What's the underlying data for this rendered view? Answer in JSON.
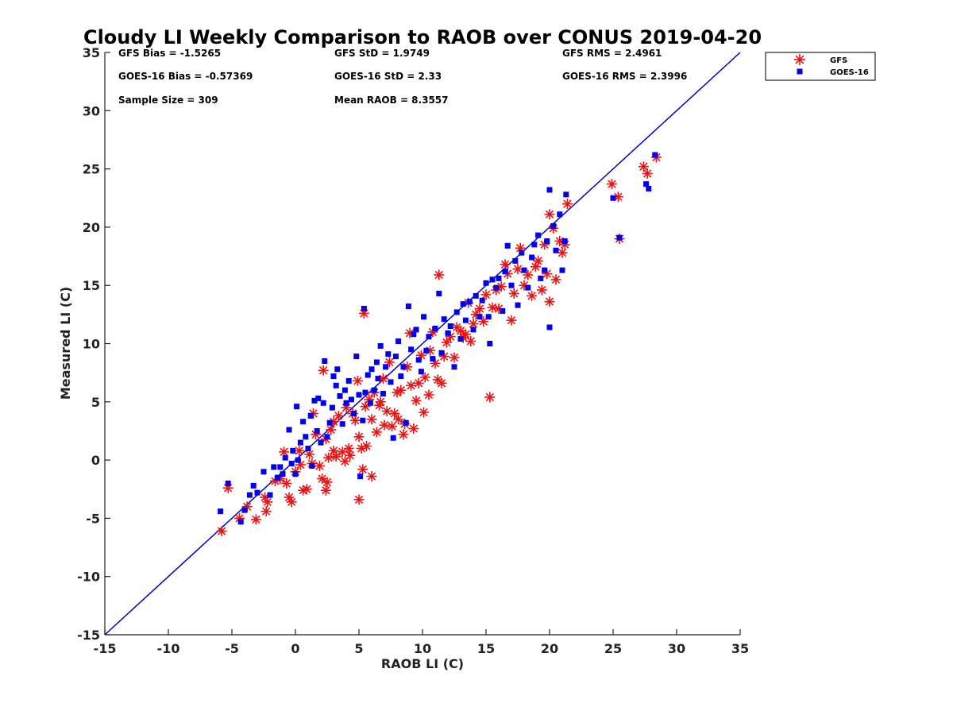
{
  "figure": {
    "title": "Cloudy LI Weekly Comparison to RAOB over CONUS 2019-04-20"
  },
  "stats": {
    "gfs_bias": "GFS Bias = -1.5265",
    "gfs_std": "GFS StD = 1.9749",
    "gfs_rms": "GFS RMS = 2.4961",
    "goes_bias": "GOES-16 Bias = -0.57369",
    "goes_std": "GOES-16 StD = 2.33",
    "goes_rms": "GOES-16 RMS = 2.3996",
    "sample_size": "Sample Size = 309",
    "mean_raob": "Mean RAOB = 8.3557"
  },
  "colors": {
    "gfs": "#ee1111",
    "goes": "#0000ee",
    "one_to_one": "#0000cc",
    "axes": "#222222"
  },
  "chart_data": {
    "type": "scatter",
    "title": "Cloudy LI Weekly Comparison to RAOB over CONUS 2019-04-20",
    "xlabel": "RAOB LI (C)",
    "ylabel": "Measured LI (C)",
    "xlim": [
      -15,
      35
    ],
    "ylim": [
      -15,
      35
    ],
    "xticks": [
      -15,
      -10,
      -5,
      0,
      5,
      10,
      15,
      20,
      25,
      30,
      35
    ],
    "yticks": [
      -15,
      -10,
      -5,
      0,
      5,
      10,
      15,
      20,
      25,
      30,
      35
    ],
    "grid": false,
    "legend_position": "top-right outside",
    "reference_line": {
      "type": "one-to-one",
      "from": [
        -15,
        -15
      ],
      "to": [
        35,
        35
      ]
    },
    "series": [
      {
        "name": "GFS",
        "marker": "asterisk",
        "color": "#ee1111",
        "points": [
          [
            -5.8,
            -6.1
          ],
          [
            -5.3,
            -2.4
          ],
          [
            -4.4,
            -5.0
          ],
          [
            -3.8,
            -4.0
          ],
          [
            -3.1,
            -5.1
          ],
          [
            -2.4,
            -3.2
          ],
          [
            -2.3,
            -4.4
          ],
          [
            -2.2,
            -3.6
          ],
          [
            -1.6,
            -1.8
          ],
          [
            -1.2,
            -1.6
          ],
          [
            -0.9,
            0.7
          ],
          [
            -0.7,
            -2.0
          ],
          [
            -0.5,
            -3.2
          ],
          [
            -0.3,
            -3.6
          ],
          [
            0.0,
            -1.0
          ],
          [
            0.3,
            0.8
          ],
          [
            0.4,
            -0.4
          ],
          [
            0.6,
            -2.6
          ],
          [
            0.9,
            -2.5
          ],
          [
            1.1,
            0.5
          ],
          [
            1.3,
            -0.3
          ],
          [
            1.4,
            4.0
          ],
          [
            1.6,
            2.2
          ],
          [
            1.9,
            -0.5
          ],
          [
            2.1,
            -1.6
          ],
          [
            2.2,
            7.7
          ],
          [
            2.4,
            -2.6
          ],
          [
            2.4,
            1.8
          ],
          [
            2.5,
            -1.9
          ],
          [
            2.6,
            0.2
          ],
          [
            2.8,
            2.6
          ],
          [
            3.0,
            0.8
          ],
          [
            3.0,
            3.3
          ],
          [
            3.2,
            0.3
          ],
          [
            3.4,
            3.8
          ],
          [
            3.7,
            0.7
          ],
          [
            3.9,
            -0.1
          ],
          [
            4.0,
            4.5
          ],
          [
            4.2,
            1.0
          ],
          [
            4.3,
            0.4
          ],
          [
            4.5,
            4.0
          ],
          [
            4.7,
            3.4
          ],
          [
            4.9,
            6.8
          ],
          [
            5.0,
            2.0
          ],
          [
            5.0,
            -3.4
          ],
          [
            5.2,
            1.0
          ],
          [
            5.3,
            -0.8
          ],
          [
            5.4,
            12.6
          ],
          [
            5.5,
            4.6
          ],
          [
            5.6,
            1.2
          ],
          [
            5.8,
            5.2
          ],
          [
            6.0,
            -1.4
          ],
          [
            6.0,
            3.5
          ],
          [
            6.2,
            5.8
          ],
          [
            6.4,
            2.4
          ],
          [
            6.6,
            4.7
          ],
          [
            6.7,
            5.0
          ],
          [
            6.9,
            7.0
          ],
          [
            7.0,
            3.0
          ],
          [
            7.2,
            4.2
          ],
          [
            7.4,
            8.4
          ],
          [
            7.6,
            2.9
          ],
          [
            7.8,
            4.0
          ],
          [
            8.0,
            5.8
          ],
          [
            8.1,
            3.5
          ],
          [
            8.3,
            6.0
          ],
          [
            8.5,
            2.2
          ],
          [
            8.6,
            3.1
          ],
          [
            8.8,
            8.0
          ],
          [
            9.0,
            10.9
          ],
          [
            9.1,
            6.4
          ],
          [
            9.3,
            2.7
          ],
          [
            9.5,
            5.1
          ],
          [
            9.7,
            6.6
          ],
          [
            9.9,
            9.0
          ],
          [
            10.1,
            4.1
          ],
          [
            10.2,
            7.1
          ],
          [
            10.5,
            5.6
          ],
          [
            10.6,
            9.4
          ],
          [
            10.8,
            11.0
          ],
          [
            11.0,
            8.3
          ],
          [
            11.2,
            6.9
          ],
          [
            11.3,
            15.9
          ],
          [
            11.5,
            6.6
          ],
          [
            11.7,
            8.9
          ],
          [
            11.9,
            10.1
          ],
          [
            12.2,
            10.6
          ],
          [
            12.5,
            8.8
          ],
          [
            12.7,
            11.4
          ],
          [
            13.0,
            11.1
          ],
          [
            13.2,
            10.5
          ],
          [
            13.4,
            10.8
          ],
          [
            13.6,
            13.5
          ],
          [
            13.8,
            10.2
          ],
          [
            14.0,
            11.7
          ],
          [
            14.2,
            12.5
          ],
          [
            14.5,
            13.0
          ],
          [
            14.8,
            11.9
          ],
          [
            15.0,
            14.2
          ],
          [
            15.3,
            5.4
          ],
          [
            15.5,
            13.1
          ],
          [
            15.8,
            14.6
          ],
          [
            16.0,
            13.0
          ],
          [
            16.2,
            14.9
          ],
          [
            16.5,
            16.8
          ],
          [
            16.7,
            16.0
          ],
          [
            17.0,
            12.0
          ],
          [
            17.2,
            14.3
          ],
          [
            17.5,
            16.4
          ],
          [
            17.7,
            18.2
          ],
          [
            18.0,
            15.0
          ],
          [
            18.3,
            15.9
          ],
          [
            18.6,
            14.1
          ],
          [
            18.9,
            16.6
          ],
          [
            19.1,
            17.1
          ],
          [
            19.4,
            14.6
          ],
          [
            19.6,
            18.5
          ],
          [
            19.8,
            16.0
          ],
          [
            20.0,
            13.6
          ],
          [
            20.0,
            21.1
          ],
          [
            20.3,
            19.9
          ],
          [
            20.5,
            15.5
          ],
          [
            20.8,
            18.8
          ],
          [
            21.0,
            17.8
          ],
          [
            21.2,
            18.5
          ],
          [
            21.4,
            22.0
          ],
          [
            24.9,
            23.7
          ],
          [
            25.4,
            22.6
          ],
          [
            25.5,
            19.0
          ],
          [
            27.4,
            25.2
          ],
          [
            27.7,
            24.6
          ],
          [
            28.4,
            26.0
          ]
        ]
      },
      {
        "name": "GOES-16",
        "marker": "square",
        "color": "#0000ee",
        "points": [
          [
            -5.9,
            -4.4
          ],
          [
            -5.3,
            -2.0
          ],
          [
            -4.3,
            -5.3
          ],
          [
            -4.0,
            -4.3
          ],
          [
            -3.6,
            -3.0
          ],
          [
            -3.3,
            -2.2
          ],
          [
            -3.0,
            -2.8
          ],
          [
            -2.5,
            -1.0
          ],
          [
            -2.0,
            -3.0
          ],
          [
            -1.7,
            -0.6
          ],
          [
            -1.4,
            -1.5
          ],
          [
            -1.2,
            -0.6
          ],
          [
            -1.0,
            -1.2
          ],
          [
            -0.8,
            0.2
          ],
          [
            -0.5,
            2.6
          ],
          [
            -0.3,
            -0.3
          ],
          [
            -0.2,
            0.8
          ],
          [
            0.0,
            -1.2
          ],
          [
            0.1,
            4.6
          ],
          [
            0.2,
            0.0
          ],
          [
            0.4,
            1.5
          ],
          [
            0.6,
            3.3
          ],
          [
            0.8,
            2.0
          ],
          [
            1.0,
            1.0
          ],
          [
            1.2,
            3.8
          ],
          [
            1.3,
            -0.5
          ],
          [
            1.5,
            5.1
          ],
          [
            1.7,
            2.5
          ],
          [
            1.8,
            5.3
          ],
          [
            2.0,
            1.5
          ],
          [
            2.2,
            4.9
          ],
          [
            2.3,
            8.5
          ],
          [
            2.5,
            2.0
          ],
          [
            2.7,
            3.2
          ],
          [
            2.9,
            4.5
          ],
          [
            3.0,
            7.2
          ],
          [
            3.2,
            6.4
          ],
          [
            3.3,
            7.8
          ],
          [
            3.5,
            5.5
          ],
          [
            3.7,
            3.1
          ],
          [
            3.9,
            6.0
          ],
          [
            4.0,
            4.9
          ],
          [
            4.2,
            6.8
          ],
          [
            4.4,
            5.2
          ],
          [
            4.6,
            4.0
          ],
          [
            4.8,
            8.9
          ],
          [
            5.0,
            5.6
          ],
          [
            5.1,
            -1.4
          ],
          [
            5.3,
            3.4
          ],
          [
            5.4,
            13.0
          ],
          [
            5.5,
            5.8
          ],
          [
            5.7,
            7.3
          ],
          [
            5.9,
            4.9
          ],
          [
            6.0,
            7.8
          ],
          [
            6.2,
            6.0
          ],
          [
            6.4,
            8.4
          ],
          [
            6.5,
            7.0
          ],
          [
            6.7,
            9.8
          ],
          [
            6.9,
            5.7
          ],
          [
            7.1,
            8.0
          ],
          [
            7.3,
            9.1
          ],
          [
            7.5,
            6.7
          ],
          [
            7.7,
            1.9
          ],
          [
            7.9,
            8.9
          ],
          [
            8.1,
            10.2
          ],
          [
            8.3,
            7.2
          ],
          [
            8.5,
            8.0
          ],
          [
            8.7,
            3.2
          ],
          [
            8.9,
            13.2
          ],
          [
            9.1,
            9.5
          ],
          [
            9.3,
            10.8
          ],
          [
            9.5,
            11.2
          ],
          [
            9.7,
            8.6
          ],
          [
            9.9,
            7.6
          ],
          [
            10.1,
            12.3
          ],
          [
            10.3,
            9.4
          ],
          [
            10.5,
            10.6
          ],
          [
            10.8,
            8.7
          ],
          [
            11.0,
            11.3
          ],
          [
            11.3,
            14.3
          ],
          [
            11.5,
            9.2
          ],
          [
            11.7,
            12.1
          ],
          [
            12.0,
            10.9
          ],
          [
            12.2,
            11.5
          ],
          [
            12.5,
            8.0
          ],
          [
            12.7,
            12.7
          ],
          [
            13.0,
            10.4
          ],
          [
            13.2,
            13.4
          ],
          [
            13.4,
            12.0
          ],
          [
            13.7,
            13.6
          ],
          [
            14.0,
            11.2
          ],
          [
            14.2,
            14.1
          ],
          [
            14.5,
            12.3
          ],
          [
            14.7,
            13.7
          ],
          [
            15.0,
            15.2
          ],
          [
            15.2,
            12.3
          ],
          [
            15.3,
            10.0
          ],
          [
            15.5,
            15.5
          ],
          [
            15.8,
            14.8
          ],
          [
            16.0,
            15.6
          ],
          [
            16.3,
            12.8
          ],
          [
            16.5,
            16.2
          ],
          [
            16.7,
            18.4
          ],
          [
            17.0,
            15.0
          ],
          [
            17.3,
            17.1
          ],
          [
            17.5,
            13.3
          ],
          [
            17.8,
            17.8
          ],
          [
            18.0,
            16.3
          ],
          [
            18.3,
            14.8
          ],
          [
            18.6,
            17.4
          ],
          [
            18.8,
            18.5
          ],
          [
            19.1,
            19.3
          ],
          [
            19.3,
            15.6
          ],
          [
            19.6,
            16.3
          ],
          [
            19.8,
            18.8
          ],
          [
            20.0,
            23.2
          ],
          [
            20.0,
            11.4
          ],
          [
            20.3,
            20.1
          ],
          [
            20.5,
            18.0
          ],
          [
            20.8,
            21.1
          ],
          [
            21.0,
            16.3
          ],
          [
            21.2,
            18.8
          ],
          [
            21.3,
            22.8
          ],
          [
            25.0,
            22.5
          ],
          [
            25.5,
            19.1
          ],
          [
            27.6,
            23.7
          ],
          [
            27.8,
            23.3
          ],
          [
            28.3,
            26.2
          ]
        ]
      }
    ]
  }
}
